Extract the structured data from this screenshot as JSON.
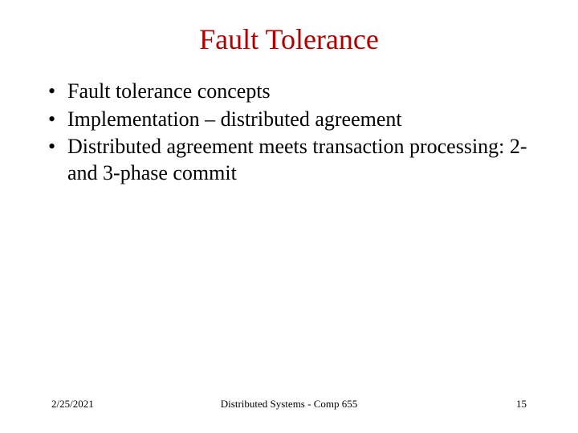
{
  "slide": {
    "title": "Fault Tolerance",
    "title_color": "#b00000",
    "title_fontsize": 36,
    "bullets": [
      "Fault tolerance concepts",
      "Implementation – distributed agreement",
      "Distributed agreement meets transaction processing: 2- and 3-phase commit"
    ],
    "bullet_fontsize": 26,
    "bullet_color": "#000000",
    "background_color": "#ffffff"
  },
  "footer": {
    "date": "2/25/2021",
    "center": "Distributed Systems - Comp 655",
    "page_number": "15",
    "fontsize": 13,
    "color": "#000000"
  }
}
